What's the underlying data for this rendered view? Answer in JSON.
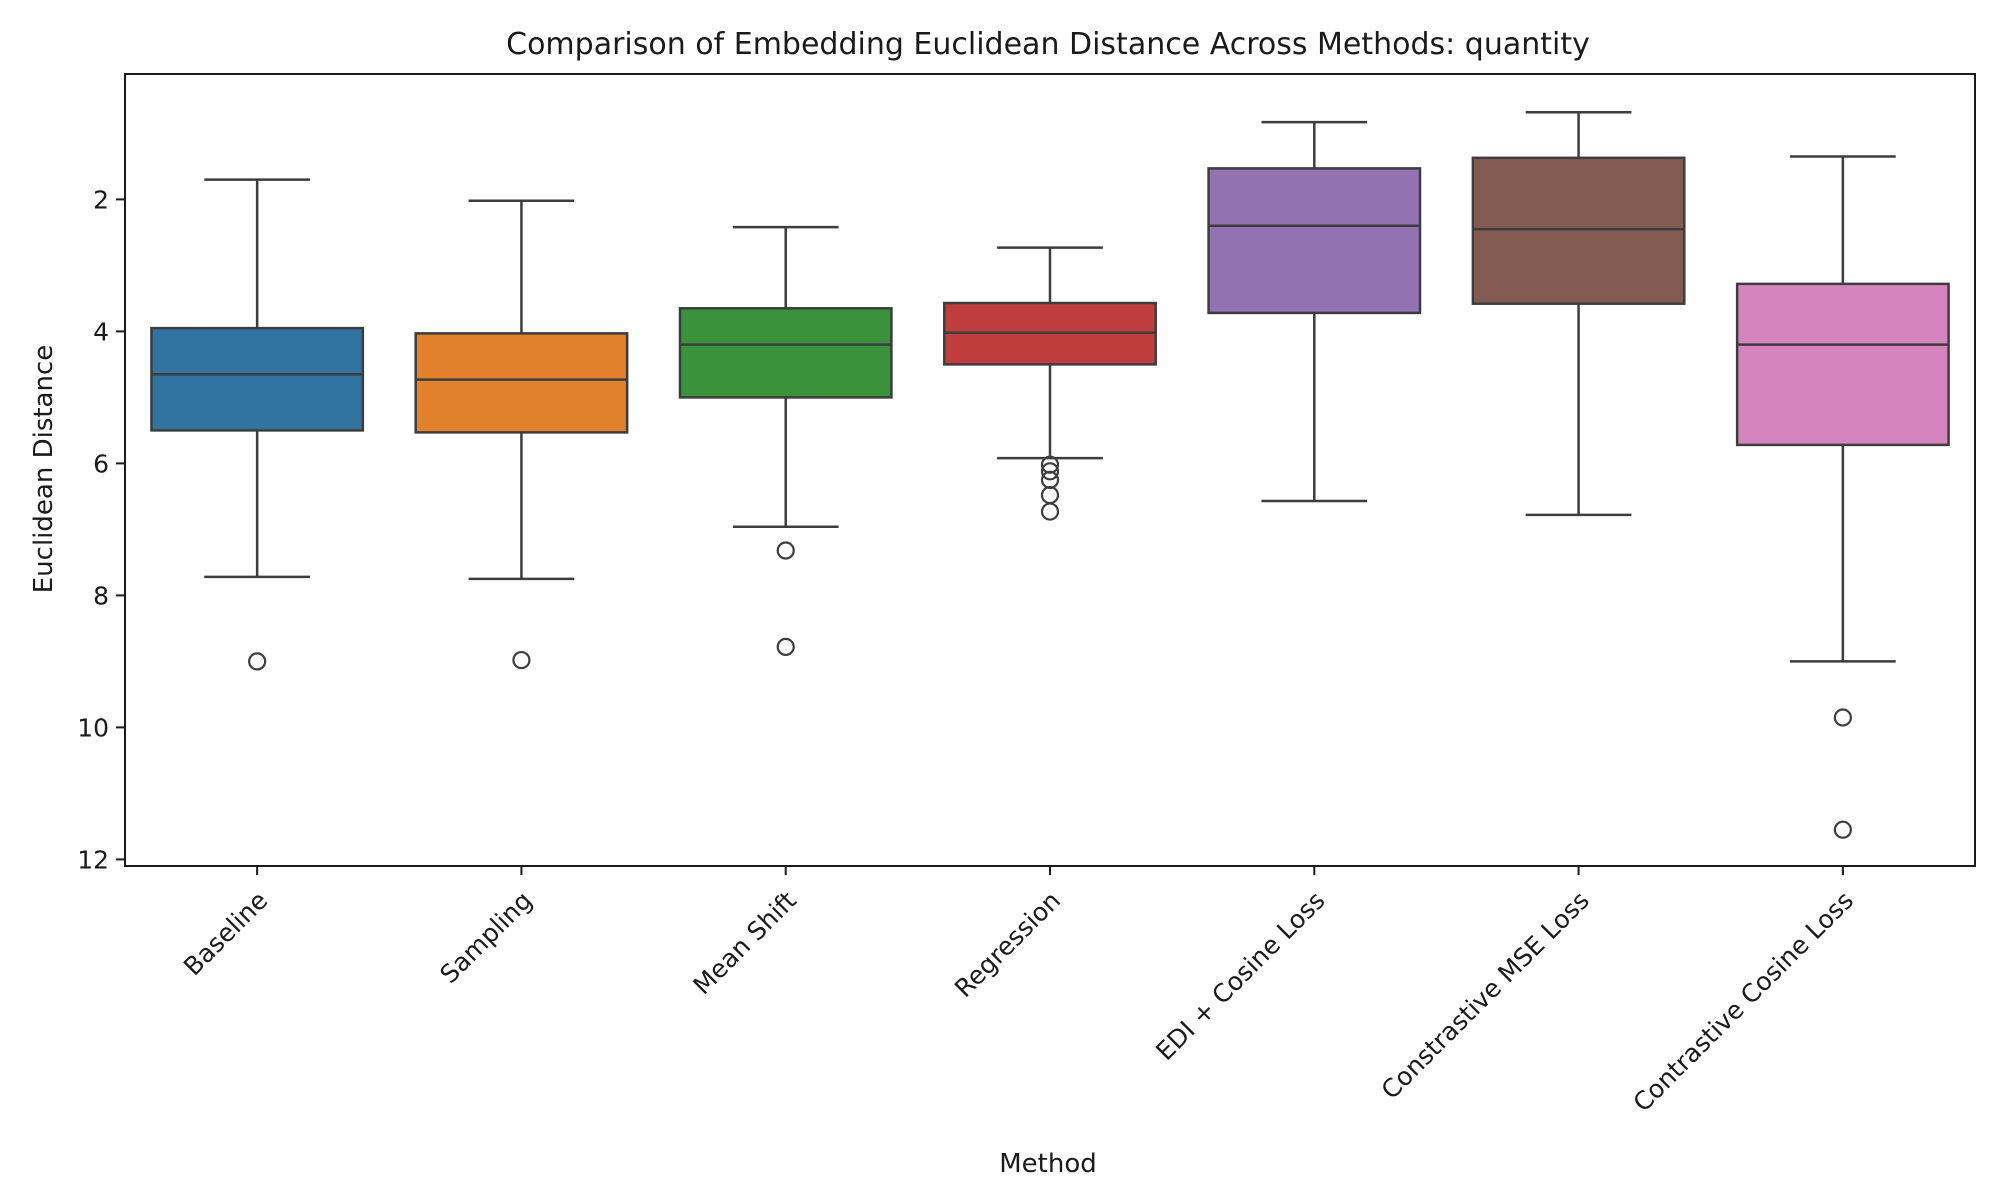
{
  "chart_data": {
    "type": "box",
    "title": "Comparison of Embedding Euclidean Distance Across Methods: quantity",
    "xlabel": "Method",
    "ylabel": "Euclidean Distance",
    "y_inverted": true,
    "ylim": [
      0.1,
      12.1
    ],
    "yticks": [
      2,
      4,
      6,
      8,
      10,
      12
    ],
    "grid": false,
    "categories": [
      "Baseline",
      "Sampling",
      "Mean Shift",
      "Regression",
      "EDI + Cosine Loss",
      "Constrastive MSE Loss",
      "Contrastive Cosine Loss"
    ],
    "series": [
      {
        "category": "Baseline",
        "color": "#3274a1",
        "whisker_low": 1.7,
        "q1": 3.95,
        "median": 4.65,
        "q3": 5.5,
        "whisker_high": 7.72,
        "outliers": [
          9.0
        ]
      },
      {
        "category": "Sampling",
        "color": "#e1812c",
        "whisker_low": 2.02,
        "q1": 4.03,
        "median": 4.73,
        "q3": 5.53,
        "whisker_high": 7.75,
        "outliers": [
          8.98
        ]
      },
      {
        "category": "Mean Shift",
        "color": "#3a923a",
        "whisker_low": 2.42,
        "q1": 3.65,
        "median": 4.2,
        "q3": 5.0,
        "whisker_high": 6.96,
        "outliers": [
          7.32,
          8.78
        ]
      },
      {
        "category": "Regression",
        "color": "#c03d3e",
        "whisker_low": 2.73,
        "q1": 3.57,
        "median": 4.02,
        "q3": 4.5,
        "whisker_high": 5.92,
        "outliers": [
          6.02,
          6.12,
          6.25,
          6.48,
          6.73
        ]
      },
      {
        "category": "EDI + Cosine Loss",
        "color": "#9372b2",
        "whisker_low": 0.83,
        "q1": 1.53,
        "median": 2.4,
        "q3": 3.72,
        "whisker_high": 6.57,
        "outliers": []
      },
      {
        "category": "Constrastive MSE Loss",
        "color": "#845b53",
        "whisker_low": 0.68,
        "q1": 1.37,
        "median": 2.45,
        "q3": 3.58,
        "whisker_high": 6.78,
        "outliers": []
      },
      {
        "category": "Contrastive Cosine Loss",
        "color": "#d684bd",
        "whisker_low": 1.35,
        "q1": 3.28,
        "median": 4.2,
        "q3": 5.72,
        "whisker_high": 9.0,
        "outliers": [
          9.85,
          11.55
        ]
      }
    ]
  }
}
